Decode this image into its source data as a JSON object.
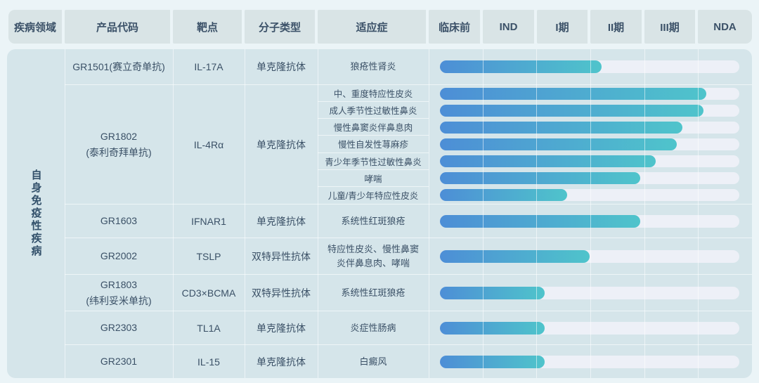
{
  "header": {
    "columns": [
      "疾病领域",
      "产品代码",
      "靶点",
      "分子类型",
      "适应症",
      "临床前",
      "IND",
      "I期",
      "II期",
      "III期",
      "NDA"
    ]
  },
  "disease_area": "自身免疫性疾病",
  "colors": {
    "page_bg": "#ebf4f7",
    "panel_bg": "#d5e5ea",
    "header_bg": "#d9e4e6",
    "header_text": "#3b5168",
    "body_text": "#3a5066",
    "track": "#edf0f7",
    "bar_gradient_start": "#4d8ed6",
    "bar_gradient_end": "#4fc4cb"
  },
  "chart_data": {
    "type": "bar",
    "orientation": "horizontal",
    "stages": [
      "临床前",
      "IND",
      "I期",
      "II期",
      "III期",
      "NDA"
    ],
    "legend_position": "none",
    "grid": true,
    "rows": [
      {
        "product": "GR1501(赛立奇单抗)",
        "target": "IL-17A",
        "molecule": "单克隆抗体",
        "indications": [
          {
            "label": "狼疮性肾炎",
            "progress_pct": 54,
            "stage_reached": "II期"
          }
        ]
      },
      {
        "product": "GR1802\n(泰利奇拜单抗)",
        "target": "IL-4Rα",
        "molecule": "单克隆抗体",
        "indications": [
          {
            "label": "中、重度特应性皮炎",
            "progress_pct": 89,
            "stage_reached": "III期"
          },
          {
            "label": "成人季节性过敏性鼻炎",
            "progress_pct": 88,
            "stage_reached": "III期"
          },
          {
            "label": "慢性鼻窦炎伴鼻息肉",
            "progress_pct": 81,
            "stage_reached": "III期"
          },
          {
            "label": "慢性自发性荨麻疹",
            "progress_pct": 79,
            "stage_reached": "III期"
          },
          {
            "label": "青少年季节性过敏性鼻炎",
            "progress_pct": 72,
            "stage_reached": "III期"
          },
          {
            "label": "哮喘",
            "progress_pct": 67,
            "stage_reached": "II期"
          },
          {
            "label": "儿童/青少年特应性皮炎",
            "progress_pct": 42.5,
            "stage_reached": "I期"
          }
        ]
      },
      {
        "product": "GR1603",
        "target": "IFNAR1",
        "molecule": "单克隆抗体",
        "indications": [
          {
            "label": "系统性红斑狼疮",
            "progress_pct": 67,
            "stage_reached": "II期"
          }
        ]
      },
      {
        "product": "GR2002",
        "target": "TSLP",
        "molecule": "双特异性抗体",
        "indications": [
          {
            "label": "特应性皮炎、慢性鼻窦炎伴鼻息肉、哮喘",
            "progress_pct": 50,
            "stage_reached": "I期"
          }
        ]
      },
      {
        "product": "GR1803\n(纬利妥米单抗)",
        "target": "CD3×BCMA",
        "molecule": "双特异性抗体",
        "indications": [
          {
            "label": "系统性红斑狼疮",
            "progress_pct": 35,
            "stage_reached": "I期"
          }
        ]
      },
      {
        "product": "GR2303",
        "target": "TL1A",
        "molecule": "单克隆抗体",
        "indications": [
          {
            "label": "炎症性肠病",
            "progress_pct": 35,
            "stage_reached": "I期"
          }
        ]
      },
      {
        "product": "GR2301",
        "target": "IL-15",
        "molecule": "单克隆抗体",
        "indications": [
          {
            "label": "白癜风",
            "progress_pct": 35,
            "stage_reached": "I期"
          }
        ]
      }
    ]
  }
}
